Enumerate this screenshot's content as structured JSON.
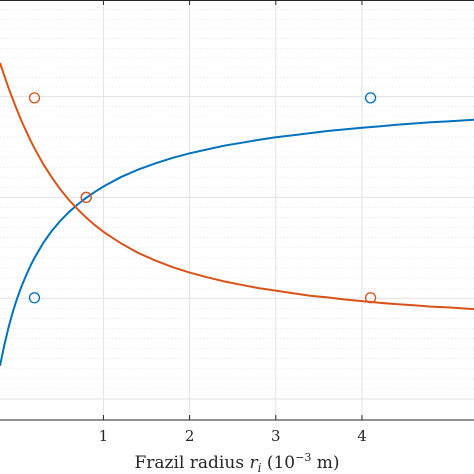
{
  "chart_data": {
    "type": "line",
    "title": "",
    "xlabel": {
      "text": "Frazil radius",
      "symbol": "r",
      "subscript": "i",
      "unit_open": "(10",
      "exponent": "−3",
      "unit_close": " m)"
    },
    "ylabel": "",
    "xlim": [
      -0.2,
      5.3
    ],
    "ylim": [
      0,
      1
    ],
    "x_ticks": [
      1,
      2,
      3,
      4
    ],
    "x_tick_labels": [
      "1",
      "2",
      "3",
      "4"
    ],
    "y_major_ticks": [
      0.05,
      0.29,
      0.53,
      0.77,
      1.0
    ],
    "grid": true,
    "minor_grid": true,
    "legend": "none",
    "series": [
      {
        "color": "#0072BD",
        "x": [
          -0.2,
          -0.15,
          -0.1,
          -0.05,
          0,
          0.05,
          0.1,
          0.15,
          0.2,
          0.3,
          0.4,
          0.5,
          0.6,
          0.7,
          0.8,
          0.9,
          1.0,
          1.2,
          1.4,
          1.6,
          1.8,
          2.0,
          2.2,
          2.4,
          2.6,
          2.8,
          3.0,
          3.2,
          3.4,
          3.6,
          3.8,
          4.0,
          4.2,
          4.4,
          4.6,
          4.8,
          5.0,
          5.3
        ],
        "y": [
          0.129,
          0.178,
          0.221,
          0.258,
          0.29,
          0.318,
          0.343,
          0.366,
          0.386,
          0.421,
          0.45,
          0.474,
          0.495,
          0.513,
          0.529,
          0.543,
          0.556,
          0.578,
          0.596,
          0.611,
          0.624,
          0.635,
          0.644,
          0.653,
          0.66,
          0.667,
          0.673,
          0.678,
          0.683,
          0.688,
          0.692,
          0.696,
          0.699,
          0.703,
          0.706,
          0.709,
          0.711,
          0.715
        ],
        "markers": [
          {
            "x": 0.2,
            "y": 0.291
          },
          {
            "x": 0.8,
            "y": 0.53
          },
          {
            "x": 4.1,
            "y": 0.767
          }
        ]
      },
      {
        "color": "#D95319",
        "x": [
          -0.2,
          -0.15,
          -0.1,
          -0.05,
          0,
          0.05,
          0.1,
          0.15,
          0.2,
          0.3,
          0.4,
          0.5,
          0.6,
          0.7,
          0.8,
          0.9,
          1.0,
          1.2,
          1.4,
          1.6,
          1.8,
          2.0,
          2.2,
          2.4,
          2.6,
          2.8,
          3.0,
          3.2,
          3.4,
          3.6,
          3.8,
          4.0,
          4.2,
          4.4,
          4.6,
          4.8,
          5.0,
          5.3
        ],
        "y": [
          0.85,
          0.82,
          0.79,
          0.763,
          0.737,
          0.712,
          0.689,
          0.667,
          0.647,
          0.61,
          0.578,
          0.549,
          0.524,
          0.502,
          0.482,
          0.464,
          0.448,
          0.421,
          0.398,
          0.38,
          0.364,
          0.351,
          0.34,
          0.33,
          0.322,
          0.314,
          0.308,
          0.302,
          0.296,
          0.292,
          0.287,
          0.283,
          0.279,
          0.276,
          0.273,
          0.27,
          0.268,
          0.264
        ],
        "markers": [
          {
            "x": 0.2,
            "y": 0.767
          },
          {
            "x": 0.8,
            "y": 0.53
          },
          {
            "x": 4.1,
            "y": 0.291
          }
        ]
      }
    ]
  }
}
